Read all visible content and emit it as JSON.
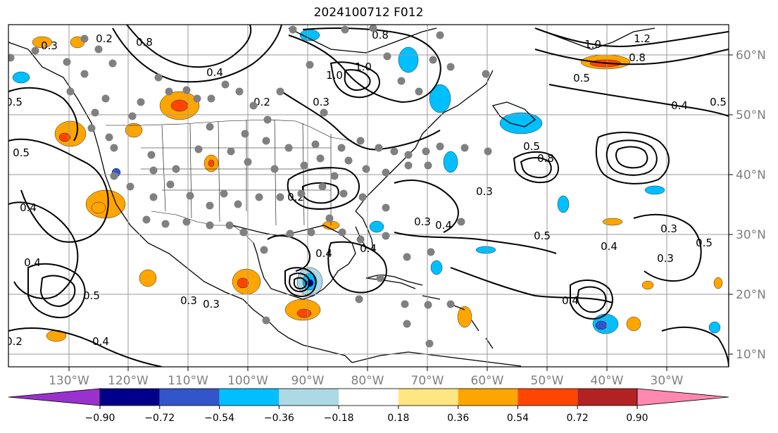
{
  "title": "2024100712 F012",
  "colors": {
    "map_background": "#ffffff",
    "gridline": "#9a9a9a",
    "contour": "#000000",
    "station_dot": "#808080",
    "coastline": "#000000"
  },
  "lon_labels": [
    "130°W",
    "120°W",
    "110°W",
    "100°W",
    "90°W",
    "80°W",
    "70°W",
    "60°W",
    "50°W",
    "40°W",
    "30°W"
  ],
  "lat_labels": [
    "60°N",
    "50°N",
    "40°N",
    "30°N",
    "20°N",
    "10°N"
  ],
  "colorbar": {
    "ticks": [
      "−0.90",
      "−0.72",
      "−0.54",
      "−0.36",
      "−0.18",
      "0.18",
      "0.36",
      "0.54",
      "0.72",
      "0.90"
    ],
    "under_color": "#9932cc",
    "over_color": "#ff88b0",
    "bins": [
      "#9932cc",
      "#00008b",
      "#3355cc",
      "#00bfff",
      "#add8e6",
      "#ffffff",
      "#ffe680",
      "#ffa500",
      "#ff4500",
      "#b22222",
      "#ff88b0"
    ]
  },
  "contour_labels": [
    {
      "text": "0.3"
    },
    {
      "text": "0.2"
    },
    {
      "text": "0.8"
    },
    {
      "text": "0.4"
    },
    {
      "text": "1.0"
    },
    {
      "text": "0.5"
    },
    {
      "text": "0.2"
    },
    {
      "text": "0.3"
    },
    {
      "text": "1.0"
    },
    {
      "text": "0.8"
    },
    {
      "text": "1.2"
    },
    {
      "text": "1.0"
    },
    {
      "text": "0.8"
    },
    {
      "text": "0.5"
    },
    {
      "text": "0.4"
    },
    {
      "text": "0.5"
    },
    {
      "text": "0.4"
    },
    {
      "text": "0.5"
    },
    {
      "text": "0.4"
    },
    {
      "text": "0.8"
    },
    {
      "text": "0.5"
    },
    {
      "text": "0.3"
    },
    {
      "text": "0.4"
    },
    {
      "text": "0.3"
    },
    {
      "text": "0.3"
    },
    {
      "text": "0.4"
    },
    {
      "text": "0.5"
    },
    {
      "text": "0.3"
    },
    {
      "text": "0.5"
    },
    {
      "text": "0.4"
    },
    {
      "text": "0.4"
    },
    {
      "text": "0.2"
    },
    {
      "text": "0.2"
    },
    {
      "text": "0.4"
    },
    {
      "text": "0.5"
    },
    {
      "text": "0.3"
    },
    {
      "text": "0.3"
    },
    {
      "text": "0.4"
    }
  ]
}
